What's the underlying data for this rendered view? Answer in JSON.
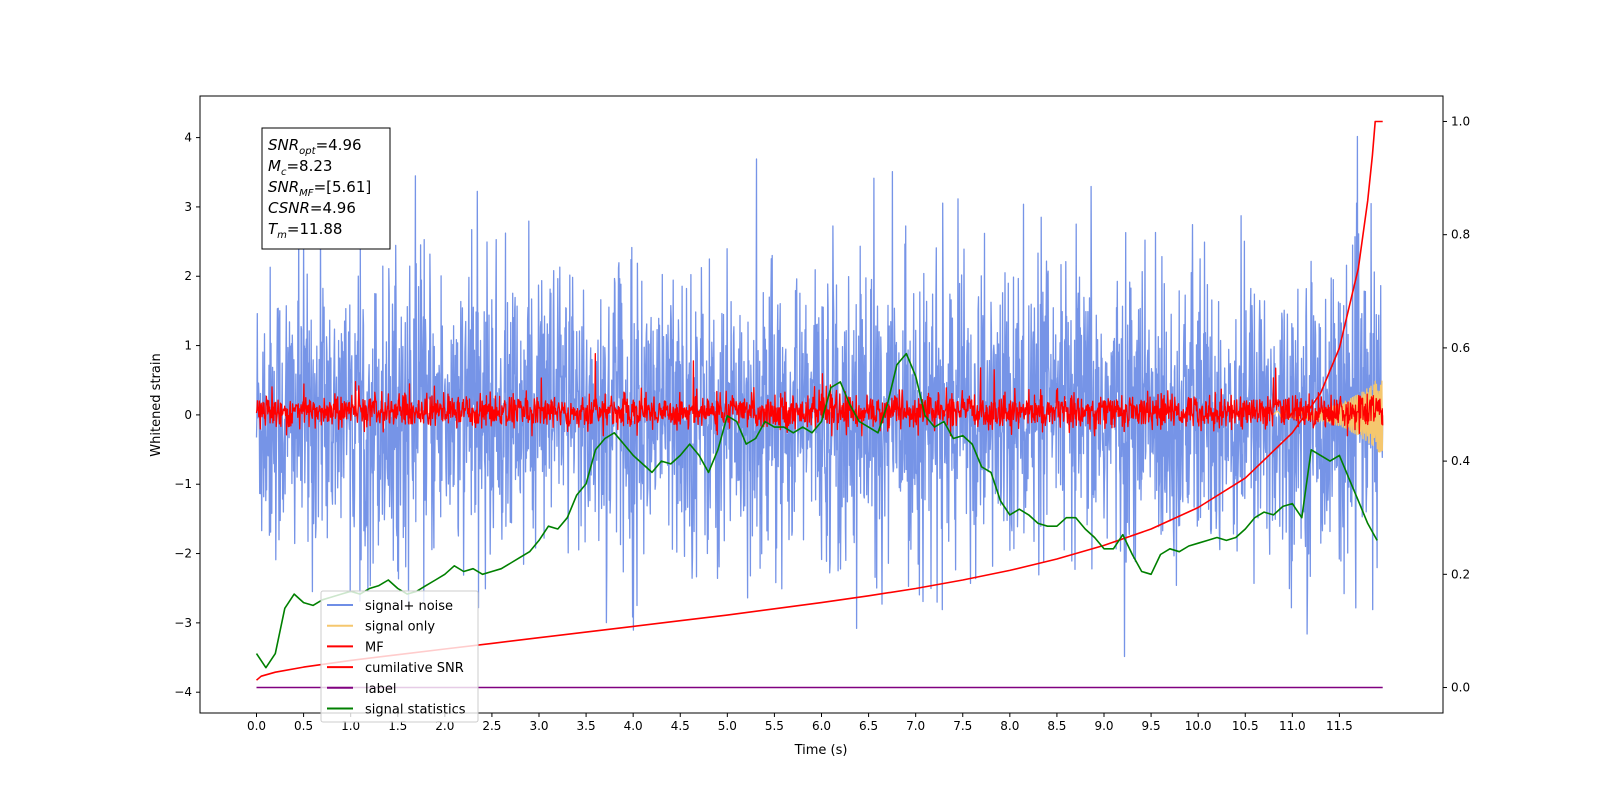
{
  "chart_data": {
    "type": "line",
    "xlabel": "Time (s)",
    "ylabel": "Whitened strain",
    "xlim": [
      -0.6,
      12.6
    ],
    "ylim": [
      -4.3,
      4.6
    ],
    "y2lim": [
      -0.045,
      1.045
    ],
    "x_ticks": [
      0.0,
      0.5,
      1.0,
      1.5,
      2.0,
      2.5,
      3.0,
      3.5,
      4.0,
      4.5,
      5.0,
      5.5,
      6.0,
      6.5,
      7.0,
      7.5,
      8.0,
      8.5,
      9.0,
      9.5,
      10.0,
      10.5,
      11.0,
      11.5
    ],
    "x_tick_labels": [
      "0.0",
      "0.5",
      "1.0",
      "1.5",
      "2.0",
      "2.5",
      "3.0",
      "3.5",
      "4.0",
      "4.5",
      "5.0",
      "5.5",
      "6.0",
      "6.5",
      "7.0",
      "7.5",
      "8.0",
      "8.5",
      "9.0",
      "9.5",
      "10.0",
      "10.5",
      "11.0",
      "11.5"
    ],
    "y_ticks": [
      -4,
      -3,
      -2,
      -1,
      0,
      1,
      2,
      3,
      4
    ],
    "y_tick_labels": [
      "−4",
      "−3",
      "−2",
      "−1",
      "0",
      "1",
      "2",
      "3",
      "4"
    ],
    "y2_ticks": [
      0.0,
      0.2,
      0.4,
      0.6,
      0.8,
      1.0
    ],
    "y2_tick_labels": [
      "0.0",
      "0.2",
      "0.4",
      "0.6",
      "0.8",
      "1.0"
    ],
    "grid": false,
    "legend_position": "lower-left",
    "series": [
      {
        "name": "signal+ noise",
        "color": "#6f8ee6",
        "axis": "left",
        "style": "noise",
        "x_range": [
          0.0,
          11.96
        ],
        "amplitude_range": [
          -3.9,
          4.18
        ]
      },
      {
        "name": "signal only",
        "color": "#f5c76e",
        "axis": "left",
        "style": "chirp",
        "x_range": [
          10.8,
          11.96
        ],
        "amplitude_range": [
          -0.5,
          0.8
        ]
      },
      {
        "name": "MF",
        "color": "#ff0000",
        "axis": "left",
        "style": "noise",
        "x_range": [
          0.0,
          11.96
        ],
        "amplitude_range": [
          -0.3,
          0.97
        ]
      },
      {
        "name": "cumilative SNR",
        "color": "#ff0000",
        "axis": "right",
        "x": [
          0.0,
          0.05,
          0.2,
          0.5,
          1.0,
          1.5,
          2.0,
          2.5,
          3.0,
          3.5,
          4.0,
          4.5,
          5.0,
          5.5,
          6.0,
          6.5,
          7.0,
          7.5,
          8.0,
          8.5,
          9.0,
          9.5,
          10.0,
          10.5,
          11.0,
          11.3,
          11.5,
          11.7,
          11.8,
          11.85,
          11.88,
          11.96
        ],
        "y": [
          0.013,
          0.02,
          0.027,
          0.036,
          0.048,
          0.058,
          0.068,
          0.078,
          0.088,
          0.098,
          0.108,
          0.118,
          0.128,
          0.139,
          0.15,
          0.162,
          0.175,
          0.19,
          0.207,
          0.227,
          0.251,
          0.28,
          0.318,
          0.37,
          0.45,
          0.52,
          0.6,
          0.74,
          0.86,
          0.94,
          1.0,
          1.0
        ]
      },
      {
        "name": "label",
        "color": "#800080",
        "axis": "right",
        "x": [
          0.0,
          11.96
        ],
        "y": [
          0.0,
          0.0
        ]
      },
      {
        "name": "signal statistics",
        "color": "#008000",
        "axis": "right",
        "x": [
          0.0,
          0.1,
          0.2,
          0.3,
          0.4,
          0.5,
          0.6,
          0.7,
          0.8,
          0.9,
          1.0,
          1.1,
          1.2,
          1.3,
          1.4,
          1.5,
          1.6,
          1.7,
          1.8,
          1.9,
          2.0,
          2.1,
          2.2,
          2.3,
          2.4,
          2.5,
          2.6,
          2.7,
          2.8,
          2.9,
          3.0,
          3.1,
          3.2,
          3.3,
          3.4,
          3.5,
          3.6,
          3.7,
          3.8,
          3.9,
          4.0,
          4.1,
          4.2,
          4.3,
          4.4,
          4.5,
          4.6,
          4.7,
          4.8,
          4.9,
          5.0,
          5.1,
          5.2,
          5.3,
          5.4,
          5.5,
          5.6,
          5.7,
          5.8,
          5.9,
          6.0,
          6.1,
          6.2,
          6.3,
          6.4,
          6.5,
          6.6,
          6.7,
          6.8,
          6.9,
          7.0,
          7.1,
          7.2,
          7.3,
          7.4,
          7.5,
          7.6,
          7.7,
          7.8,
          7.9,
          8.0,
          8.1,
          8.2,
          8.3,
          8.4,
          8.5,
          8.6,
          8.7,
          8.8,
          8.9,
          9.0,
          9.1,
          9.2,
          9.3,
          9.4,
          9.5,
          9.6,
          9.7,
          9.8,
          9.9,
          10.0,
          10.1,
          10.2,
          10.3,
          10.4,
          10.5,
          10.6,
          10.7,
          10.8,
          10.9,
          11.0,
          11.1,
          11.2,
          11.3,
          11.4,
          11.5,
          11.6,
          11.7,
          11.8,
          11.9
        ],
        "y": [
          0.06,
          0.035,
          0.06,
          0.14,
          0.165,
          0.15,
          0.145,
          0.155,
          0.16,
          0.165,
          0.17,
          0.165,
          0.175,
          0.18,
          0.19,
          0.175,
          0.165,
          0.17,
          0.18,
          0.19,
          0.2,
          0.215,
          0.205,
          0.21,
          0.2,
          0.205,
          0.21,
          0.22,
          0.23,
          0.24,
          0.26,
          0.285,
          0.28,
          0.3,
          0.34,
          0.36,
          0.42,
          0.44,
          0.45,
          0.43,
          0.41,
          0.395,
          0.38,
          0.4,
          0.395,
          0.41,
          0.43,
          0.41,
          0.38,
          0.42,
          0.48,
          0.47,
          0.43,
          0.44,
          0.47,
          0.46,
          0.46,
          0.45,
          0.46,
          0.45,
          0.47,
          0.53,
          0.54,
          0.5,
          0.47,
          0.46,
          0.45,
          0.5,
          0.57,
          0.59,
          0.55,
          0.48,
          0.46,
          0.47,
          0.44,
          0.445,
          0.43,
          0.39,
          0.38,
          0.33,
          0.305,
          0.315,
          0.305,
          0.29,
          0.285,
          0.285,
          0.3,
          0.3,
          0.28,
          0.265,
          0.245,
          0.245,
          0.27,
          0.235,
          0.205,
          0.2,
          0.235,
          0.245,
          0.24,
          0.25,
          0.255,
          0.26,
          0.265,
          0.26,
          0.265,
          0.28,
          0.3,
          0.31,
          0.305,
          0.32,
          0.325,
          0.3,
          0.42,
          0.41,
          0.4,
          0.41,
          0.37,
          0.33,
          0.29,
          0.26
        ]
      }
    ],
    "annotation_box": {
      "lines": [
        {
          "main": "SNR",
          "sub": "opt",
          "value": "=4.96"
        },
        {
          "main": "M",
          "sub": "c",
          "value": "=8.23"
        },
        {
          "main": "SNR",
          "sub": "MF",
          "value": "=[5.61]"
        },
        {
          "main": "CSNR",
          "sub": "",
          "value": "=4.96"
        },
        {
          "main": "T",
          "sub": "m",
          "value": "=11.88"
        }
      ]
    }
  }
}
